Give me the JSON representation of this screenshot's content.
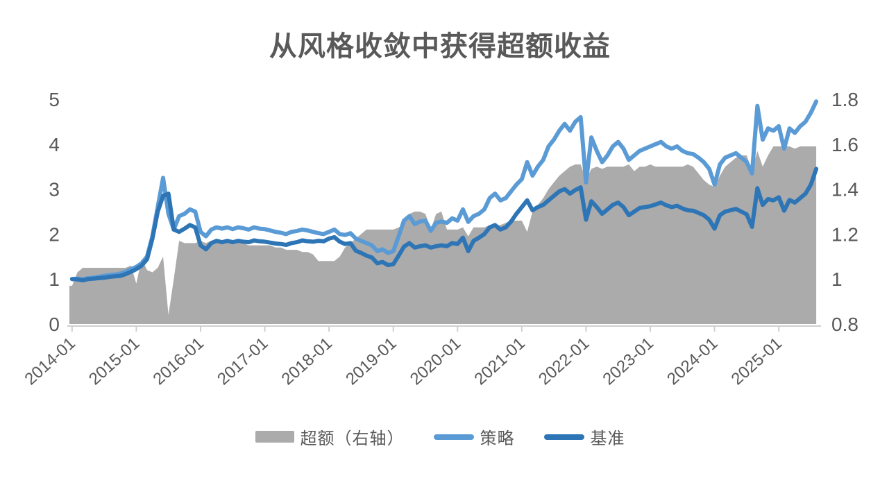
{
  "title": "从风格收敛中获得超额收益",
  "legend": {
    "items": [
      {
        "label": "超额（右轴）",
        "type": "area",
        "color": "#ABABAB"
      },
      {
        "label": "策略",
        "type": "line",
        "color": "#5B9BD5"
      },
      {
        "label": "基准",
        "type": "line",
        "color": "#2E75B6"
      }
    ]
  },
  "chart_data": {
    "type": "line+area",
    "title": "从风格收敛中获得超额收益",
    "x_start": "2014-01",
    "x_frequency": "monthly",
    "x_tick_labels": [
      "2014-01",
      "2015-01",
      "2016-01",
      "2017-01",
      "2018-01",
      "2019-01",
      "2020-01",
      "2021-01",
      "2022-01",
      "2023-01",
      "2024-01",
      "2025-01"
    ],
    "left_axis": {
      "range": [
        0,
        5
      ],
      "tick_labels": [
        "0",
        "1",
        "2",
        "3",
        "4",
        "5"
      ],
      "tick_values": [
        0,
        1,
        2,
        3,
        4,
        5
      ]
    },
    "right_axis": {
      "range": [
        0.8,
        1.8
      ],
      "tick_labels": [
        "0.8",
        "1",
        "1.2",
        "1.4",
        "1.6",
        "1.8"
      ],
      "tick_values": [
        0.8,
        1.0,
        1.2,
        1.4,
        1.6,
        1.8
      ]
    },
    "grid": false,
    "legend_position": "bottom",
    "series": [
      {
        "name": "超额（右轴）",
        "type": "area",
        "axis": "right",
        "color": "#ABABAB",
        "values": [
          0.97,
          1.03,
          1.05,
          1.05,
          1.05,
          1.05,
          1.05,
          1.05,
          1.05,
          1.05,
          1.05,
          1.06,
          0.98,
          1.09,
          1.04,
          1.03,
          1.05,
          1.1,
          0.84,
          1.0,
          1.17,
          1.16,
          1.16,
          1.16,
          1.17,
          1.16,
          1.17,
          1.17,
          1.17,
          1.16,
          1.16,
          1.16,
          1.16,
          1.15,
          1.15,
          1.15,
          1.15,
          1.15,
          1.14,
          1.14,
          1.13,
          1.13,
          1.13,
          1.12,
          1.12,
          1.11,
          1.08,
          1.08,
          1.08,
          1.08,
          1.1,
          1.14,
          1.16,
          1.18,
          1.2,
          1.22,
          1.22,
          1.22,
          1.22,
          1.22,
          1.22,
          1.23,
          1.24,
          1.29,
          1.3,
          1.3,
          1.29,
          1.22,
          1.29,
          1.3,
          1.22,
          1.22,
          1.22,
          1.23,
          1.19,
          1.23,
          1.23,
          1.23,
          1.24,
          1.24,
          1.24,
          1.25,
          1.26,
          1.26,
          1.26,
          1.21,
          1.3,
          1.33,
          1.36,
          1.4,
          1.43,
          1.46,
          1.48,
          1.5,
          1.51,
          1.51,
          1.44,
          1.49,
          1.5,
          1.49,
          1.5,
          1.5,
          1.5,
          1.5,
          1.51,
          1.48,
          1.5,
          1.5,
          1.51,
          1.5,
          1.5,
          1.5,
          1.5,
          1.5,
          1.5,
          1.51,
          1.5,
          1.47,
          1.44,
          1.42,
          1.41,
          1.46,
          1.5,
          1.52,
          1.54,
          1.55,
          1.55,
          1.48,
          1.57,
          1.5,
          1.55,
          1.59,
          1.59,
          1.59,
          1.59,
          1.58,
          1.59,
          1.59,
          1.59,
          1.59
        ]
      },
      {
        "name": "策略",
        "type": "line",
        "axis": "left",
        "color": "#5B9BD5",
        "values": [
          1.0,
          1.01,
          0.99,
          1.02,
          1.03,
          1.05,
          1.07,
          1.09,
          1.1,
          1.12,
          1.16,
          1.22,
          1.27,
          1.35,
          1.5,
          1.95,
          2.6,
          3.25,
          2.45,
          2.1,
          2.4,
          2.45,
          2.55,
          2.5,
          2.05,
          1.95,
          2.1,
          2.15,
          2.12,
          2.15,
          2.11,
          2.15,
          2.13,
          2.1,
          2.15,
          2.12,
          2.11,
          2.08,
          2.05,
          2.03,
          2.0,
          2.05,
          2.07,
          2.1,
          2.08,
          2.05,
          2.02,
          2.0,
          2.05,
          2.1,
          2.0,
          1.98,
          2.02,
          1.9,
          1.85,
          1.8,
          1.75,
          1.62,
          1.66,
          1.58,
          1.62,
          1.95,
          2.3,
          2.4,
          2.22,
          2.28,
          2.3,
          2.07,
          2.25,
          2.28,
          2.25,
          2.35,
          2.3,
          2.55,
          2.27,
          2.4,
          2.45,
          2.55,
          2.8,
          2.9,
          2.75,
          2.8,
          2.95,
          3.1,
          3.22,
          3.6,
          3.3,
          3.5,
          3.65,
          3.95,
          4.1,
          4.3,
          4.45,
          4.3,
          4.5,
          4.6,
          3.15,
          4.15,
          3.85,
          3.6,
          3.75,
          3.95,
          4.05,
          3.9,
          3.65,
          3.75,
          3.85,
          3.9,
          3.95,
          4.0,
          4.05,
          3.95,
          3.9,
          3.95,
          3.85,
          3.8,
          3.78,
          3.7,
          3.6,
          3.45,
          3.1,
          3.55,
          3.7,
          3.75,
          3.8,
          3.7,
          3.6,
          3.35,
          4.85,
          4.1,
          4.35,
          4.3,
          4.4,
          3.9,
          4.35,
          4.25,
          4.4,
          4.5,
          4.7,
          4.95
        ]
      },
      {
        "name": "基准",
        "type": "line",
        "axis": "left",
        "color": "#2E75B6",
        "values": [
          1.0,
          0.99,
          0.97,
          1.0,
          1.01,
          1.02,
          1.03,
          1.05,
          1.06,
          1.07,
          1.11,
          1.16,
          1.22,
          1.3,
          1.44,
          1.9,
          2.5,
          2.85,
          2.9,
          2.1,
          2.05,
          2.12,
          2.2,
          2.15,
          1.75,
          1.66,
          1.8,
          1.85,
          1.82,
          1.85,
          1.82,
          1.85,
          1.83,
          1.82,
          1.86,
          1.84,
          1.83,
          1.81,
          1.79,
          1.78,
          1.76,
          1.8,
          1.82,
          1.86,
          1.84,
          1.83,
          1.85,
          1.84,
          1.9,
          1.93,
          1.83,
          1.78,
          1.8,
          1.63,
          1.58,
          1.52,
          1.48,
          1.35,
          1.38,
          1.31,
          1.33,
          1.52,
          1.72,
          1.8,
          1.7,
          1.73,
          1.75,
          1.7,
          1.73,
          1.75,
          1.73,
          1.8,
          1.78,
          1.92,
          1.62,
          1.85,
          1.92,
          2.0,
          2.15,
          2.2,
          2.1,
          2.15,
          2.28,
          2.45,
          2.6,
          2.75,
          2.53,
          2.6,
          2.65,
          2.75,
          2.85,
          2.95,
          3.0,
          2.9,
          2.98,
          3.04,
          2.32,
          2.73,
          2.6,
          2.45,
          2.55,
          2.65,
          2.7,
          2.6,
          2.42,
          2.5,
          2.58,
          2.6,
          2.62,
          2.66,
          2.7,
          2.64,
          2.6,
          2.63,
          2.57,
          2.53,
          2.52,
          2.47,
          2.42,
          2.32,
          2.12,
          2.42,
          2.5,
          2.53,
          2.56,
          2.5,
          2.44,
          2.16,
          3.02,
          2.65,
          2.78,
          2.75,
          2.82,
          2.52,
          2.76,
          2.7,
          2.8,
          2.9,
          3.1,
          3.45
        ]
      }
    ],
    "style": {
      "axis_text_color": "#595959",
      "tick_line_color": "#cfcfcf",
      "background": "#ffffff",
      "line_width": 6
    }
  }
}
